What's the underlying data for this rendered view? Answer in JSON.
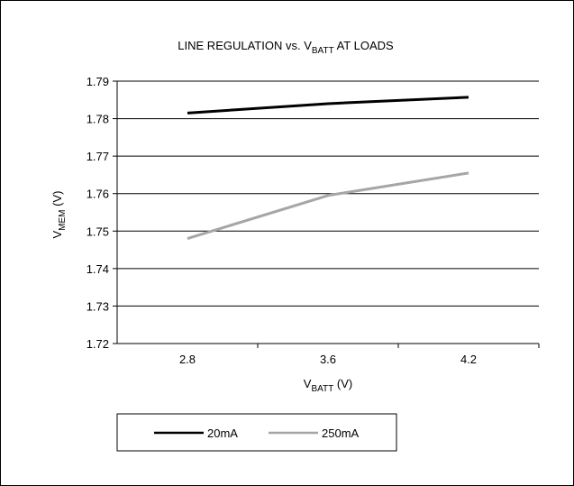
{
  "chart_data": {
    "type": "line",
    "title": {
      "prefix": "LINE REGULATION vs. V",
      "subscript": "BATT",
      "suffix": " AT LOADS"
    },
    "xlabel": {
      "main": "V",
      "subscript": "BATT",
      "suffix": " (V)"
    },
    "ylabel": {
      "main": "V",
      "subscript": "MEM",
      "suffix": " (V)"
    },
    "categories": [
      "2.8",
      "3.6",
      "4.2"
    ],
    "y_ticks": [
      "1.72",
      "1.73",
      "1.74",
      "1.75",
      "1.76",
      "1.77",
      "1.78",
      "1.79"
    ],
    "ylim": [
      1.72,
      1.79
    ],
    "grid": true,
    "legend_position": "bottom",
    "series": [
      {
        "name": "20mA",
        "values": [
          1.7815,
          1.784,
          1.7857
        ],
        "color": "#000000"
      },
      {
        "name": "250mA",
        "values": [
          1.748,
          1.7595,
          1.7655
        ],
        "color": "#a6a6a6"
      }
    ]
  }
}
